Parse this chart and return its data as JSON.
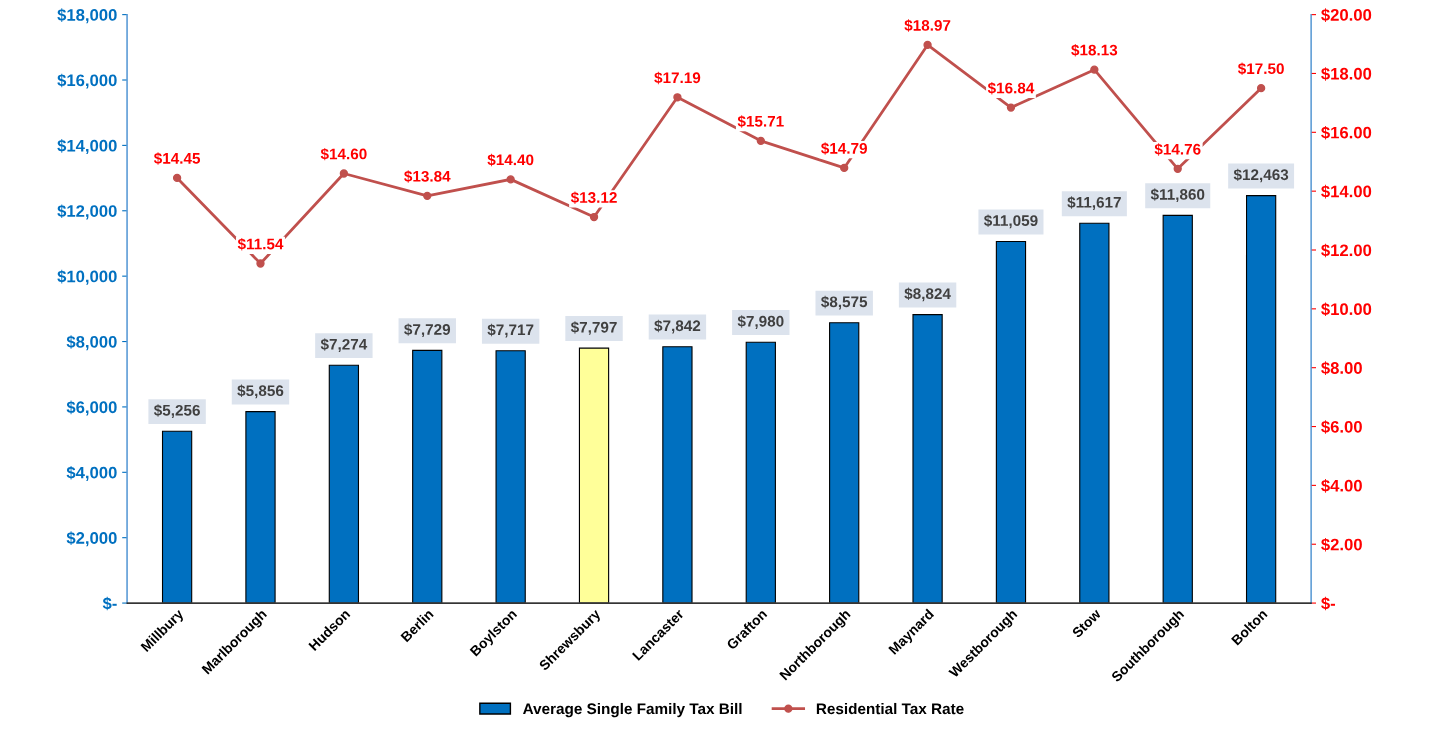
{
  "chart_data": {
    "type": "bar",
    "categories": [
      "Millbury",
      "Marlborough",
      "Hudson",
      "Berlin",
      "Boylston",
      "Shrewsbury",
      "Lancaster",
      "Grafton",
      "Northborough",
      "Maynard",
      "Westborough",
      "Stow",
      "Southborough",
      "Bolton"
    ],
    "series": [
      {
        "name": "Average Single Family Tax Bill",
        "color": "#0070c0",
        "colors": [
          "#0070c0",
          "#0070c0",
          "#0070c0",
          "#0070c0",
          "#0070c0",
          "#ffff99",
          "#0070c0",
          "#0070c0",
          "#0070c0",
          "#0070c0",
          "#0070c0",
          "#0070c0",
          "#0070c0",
          "#0070c0"
        ],
        "values": [
          5256,
          5856,
          7274,
          7729,
          7717,
          7797,
          7842,
          7980,
          8575,
          8824,
          11059,
          11617,
          11860,
          12463
        ],
        "value_labels": [
          "$5,256",
          "$5,856",
          "$7,274",
          "$7,729",
          "$7,717",
          "$7,797",
          "$7,842",
          "$7,980",
          "$8,575",
          "$8,824",
          "$11,059",
          "$11,617",
          "$11,860",
          "$12,463"
        ]
      },
      {
        "name": "Residential Tax Rate",
        "type": "line",
        "axis": "y2",
        "color": "#c0504d",
        "marker": "circle",
        "values": [
          14.45,
          11.54,
          14.6,
          13.84,
          14.4,
          13.12,
          17.19,
          15.71,
          14.79,
          18.97,
          16.84,
          18.13,
          14.76,
          17.5
        ],
        "value_labels": [
          "$14.45",
          "$11.54",
          "$14.60",
          "$13.84",
          "$14.40",
          "$13.12",
          "$17.19",
          "$15.71",
          "$14.79",
          "$18.97",
          "$16.84",
          "$18.13",
          "$14.76",
          "$17.50"
        ]
      }
    ],
    "ylim": [
      0,
      18000
    ],
    "yticks": [
      {
        "value": 0,
        "label": "$-"
      },
      {
        "value": 2000,
        "label": "$2,000"
      },
      {
        "value": 4000,
        "label": "$4,000"
      },
      {
        "value": 6000,
        "label": "$6,000"
      },
      {
        "value": 8000,
        "label": "$8,000"
      },
      {
        "value": 10000,
        "label": "$10,000"
      },
      {
        "value": 12000,
        "label": "$12,000"
      },
      {
        "value": 14000,
        "label": "$14,000"
      },
      {
        "value": 16000,
        "label": "$16,000"
      },
      {
        "value": 18000,
        "label": "$18,000"
      }
    ],
    "y2lim": [
      0,
      20
    ],
    "y2ticks": [
      {
        "value": 0,
        "label": "$-"
      },
      {
        "value": 2,
        "label": "$2.00"
      },
      {
        "value": 4,
        "label": "$4.00"
      },
      {
        "value": 6,
        "label": "$6.00"
      },
      {
        "value": 8,
        "label": "$8.00"
      },
      {
        "value": 10,
        "label": "$10.00"
      },
      {
        "value": 12,
        "label": "$12.00"
      },
      {
        "value": 14,
        "label": "$14.00"
      },
      {
        "value": 16,
        "label": "$16.00"
      },
      {
        "value": 18,
        "label": "$18.00"
      },
      {
        "value": 20,
        "label": "$20.00"
      }
    ],
    "grid": false,
    "legend": "bottom"
  }
}
